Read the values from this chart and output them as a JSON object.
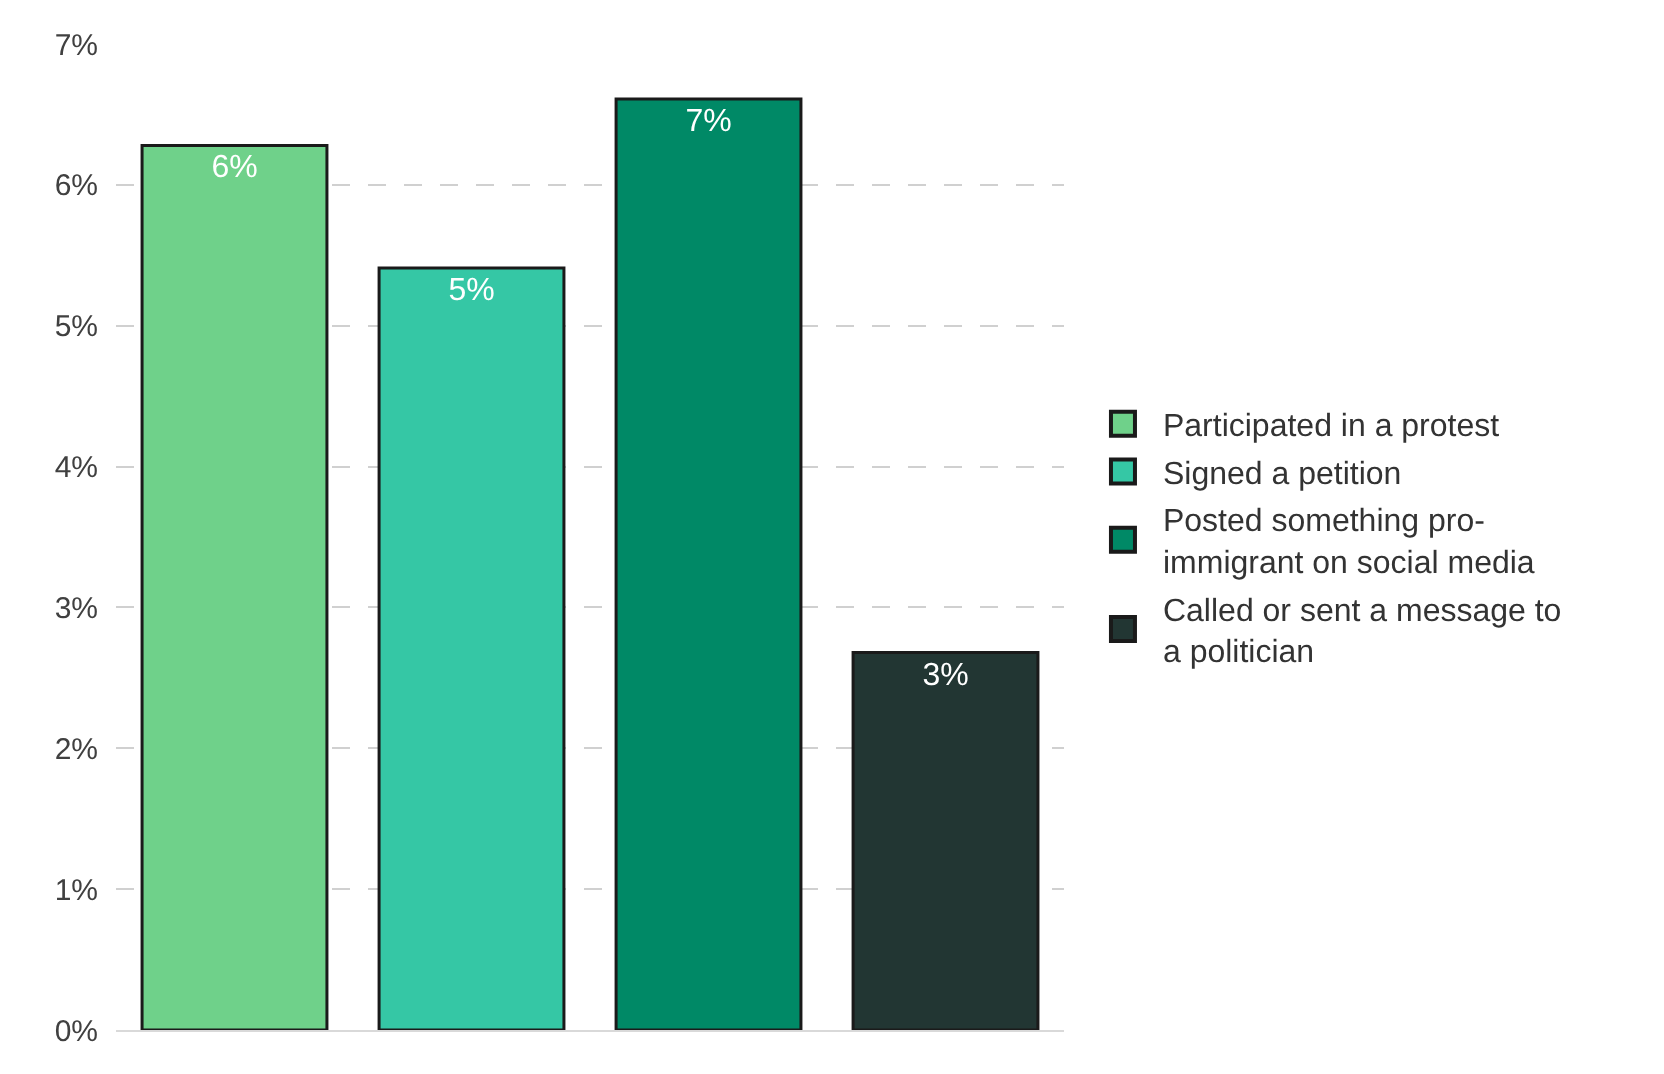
{
  "chart_data": {
    "type": "bar",
    "categories": [
      null,
      null,
      null,
      null
    ],
    "series": [
      {
        "name": "Participated in a protest",
        "color": "#6fd18a",
        "values": [
          6.28,
          null,
          null,
          null
        ],
        "value_labels": [
          "6%",
          null,
          null,
          null
        ]
      },
      {
        "name": "Signed a petition",
        "color": "#35c7a5",
        "values": [
          null,
          5.41,
          null,
          null
        ],
        "value_labels": [
          null,
          "5%",
          null,
          null
        ]
      },
      {
        "name": "Posted something pro-immigrant on social media",
        "color": "#008966",
        "values": [
          null,
          null,
          6.61,
          null
        ],
        "value_labels": [
          null,
          null,
          "7%",
          null
        ]
      },
      {
        "name": "Called or sent a message to a politician",
        "color": "#223633",
        "values": [
          null,
          null,
          null,
          2.68
        ],
        "value_labels": [
          null,
          null,
          null,
          "3%"
        ]
      }
    ],
    "ylim": [
      0,
      7
    ],
    "yticks": [
      {
        "value": 0,
        "label": "0%"
      },
      {
        "value": 1,
        "label": "1%"
      },
      {
        "value": 2,
        "label": "2%"
      },
      {
        "value": 3,
        "label": "3%"
      },
      {
        "value": 4,
        "label": "4%"
      },
      {
        "value": 5,
        "label": "5%"
      },
      {
        "value": 6,
        "label": "6%"
      },
      {
        "value": 7,
        "label": "7%"
      }
    ],
    "grid": "y",
    "legend": "right"
  }
}
